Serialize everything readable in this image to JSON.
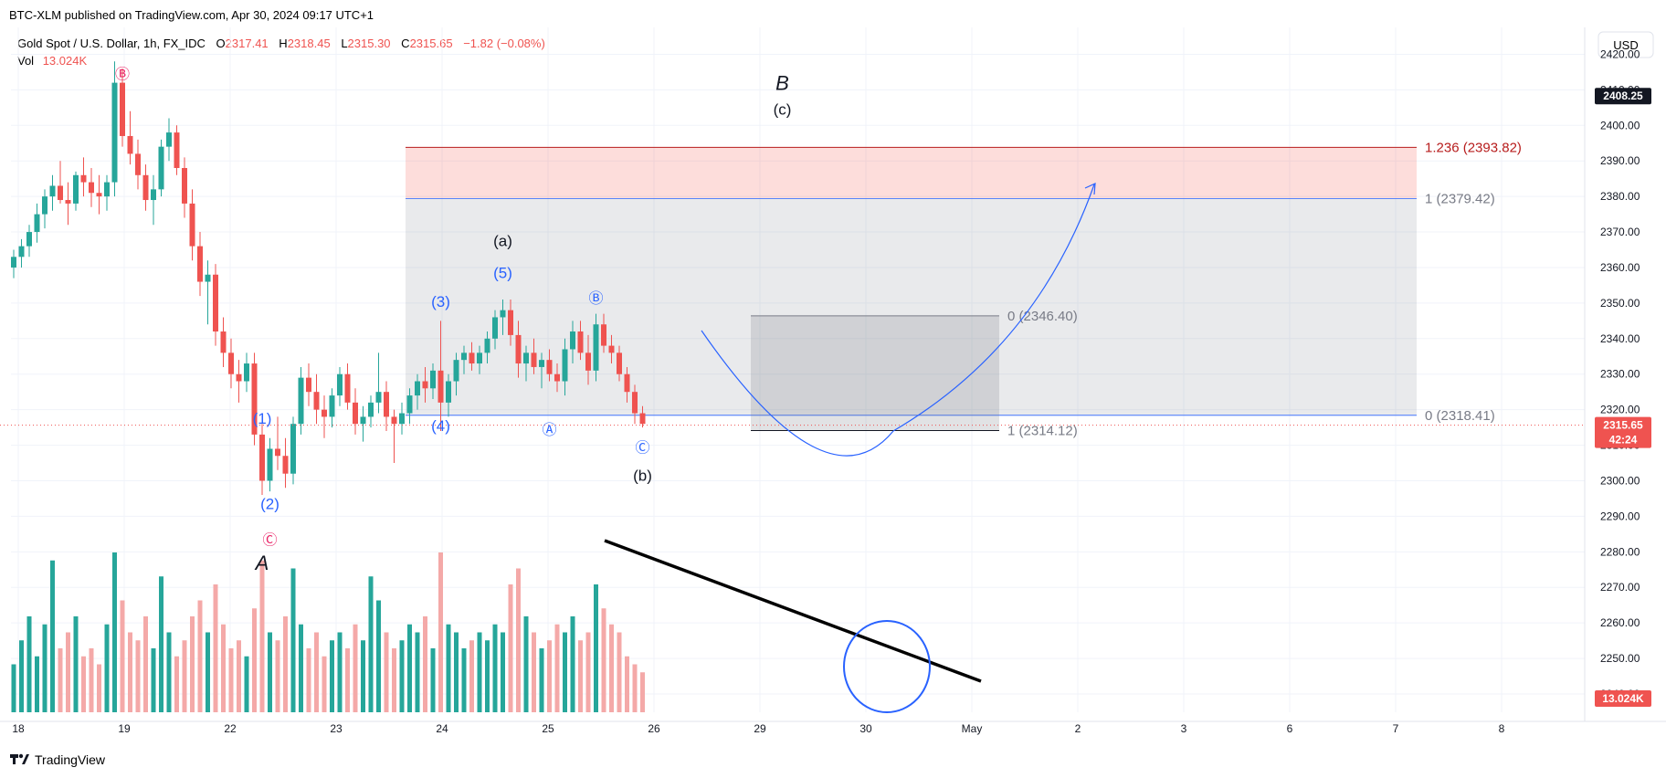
{
  "publisher": "BTC-XLM published on TradingView.com, Apr 30, 2024 09:17 UTC+1",
  "legend": {
    "symbol": "Gold Spot / U.S. Dollar, 1h, FX_IDC",
    "o_label": "O",
    "o_value": "2317.41",
    "h_label": "H",
    "h_value": "2318.45",
    "l_label": "L",
    "l_value": "2315.30",
    "c_label": "C",
    "c_value": "2315.65",
    "change": "−1.82 (−0.08%)",
    "vol_label": "Vol",
    "vol_value": "13.024K"
  },
  "currency_button": "USD",
  "brand": "TradingView",
  "colors": {
    "up": "#26a69a",
    "down": "#ef5350",
    "up_vol": "#26a69a",
    "down_vol": "#f4a9a8",
    "wave": "#2962ff",
    "fib_red": "#b71c1c",
    "pink": "#e91e63"
  },
  "chart_data": {
    "type": "candlestick",
    "ylim": [
      2240,
      2425
    ],
    "y_ticks": [
      "2420.00",
      "2410.00",
      "2400.00",
      "2390.00",
      "2380.00",
      "2370.00",
      "2360.00",
      "2350.00",
      "2340.00",
      "2330.00",
      "2320.00",
      "2310.00",
      "2300.00",
      "2290.00",
      "2280.00",
      "2270.00",
      "2260.00",
      "2250.00",
      "2240.00"
    ],
    "x_ticks": [
      "18",
      "19",
      "22",
      "23",
      "24",
      "25",
      "26",
      "29",
      "30",
      "May",
      "2",
      "3",
      "6",
      "7",
      "8"
    ],
    "price_tags": [
      {
        "label": "2408.25",
        "value": 2408.25,
        "color": "#131722"
      },
      {
        "label": "2315.65",
        "sublabel": "42:24",
        "value": 2315.65,
        "color": "#ef5350"
      },
      {
        "label": "13.024K",
        "value": 2249,
        "color": "#ef5350"
      }
    ],
    "candles": [
      [
        2360,
        2365,
        2357,
        2363
      ],
      [
        2363,
        2368,
        2360,
        2366
      ],
      [
        2366,
        2372,
        2363,
        2370
      ],
      [
        2370,
        2378,
        2367,
        2375
      ],
      [
        2375,
        2382,
        2371,
        2380
      ],
      [
        2380,
        2386,
        2376,
        2383
      ],
      [
        2383,
        2390,
        2378,
        2379
      ],
      [
        2379,
        2384,
        2372,
        2378
      ],
      [
        2378,
        2387,
        2376,
        2386
      ],
      [
        2386,
        2391,
        2380,
        2384
      ],
      [
        2384,
        2388,
        2377,
        2381
      ],
      [
        2381,
        2386,
        2375,
        2380
      ],
      [
        2380,
        2386,
        2376,
        2384
      ],
      [
        2384,
        2418,
        2380,
        2412
      ],
      [
        2412,
        2416,
        2394,
        2397
      ],
      [
        2397,
        2404,
        2389,
        2392
      ],
      [
        2392,
        2396,
        2382,
        2386
      ],
      [
        2386,
        2389,
        2376,
        2379
      ],
      [
        2379,
        2386,
        2372,
        2382
      ],
      [
        2382,
        2396,
        2380,
        2394
      ],
      [
        2394,
        2402,
        2390,
        2398
      ],
      [
        2398,
        2400,
        2386,
        2388
      ],
      [
        2388,
        2391,
        2374,
        2378
      ],
      [
        2378,
        2382,
        2362,
        2366
      ],
      [
        2366,
        2370,
        2352,
        2356
      ],
      [
        2356,
        2362,
        2344,
        2358
      ],
      [
        2358,
        2361,
        2338,
        2342
      ],
      [
        2342,
        2346,
        2332,
        2336
      ],
      [
        2336,
        2340,
        2326,
        2330
      ],
      [
        2330,
        2334,
        2322,
        2328
      ],
      [
        2328,
        2336,
        2325,
        2333
      ],
      [
        2333,
        2336,
        2310,
        2313
      ],
      [
        2313,
        2316,
        2296,
        2300
      ],
      [
        2300,
        2312,
        2297,
        2309
      ],
      [
        2309,
        2318,
        2303,
        2307
      ],
      [
        2307,
        2312,
        2298,
        2302
      ],
      [
        2302,
        2318,
        2299,
        2316
      ],
      [
        2316,
        2332,
        2313,
        2329
      ],
      [
        2329,
        2333,
        2321,
        2325
      ],
      [
        2325,
        2330,
        2316,
        2320
      ],
      [
        2320,
        2324,
        2312,
        2318
      ],
      [
        2318,
        2326,
        2315,
        2324
      ],
      [
        2324,
        2332,
        2321,
        2330
      ],
      [
        2330,
        2333,
        2320,
        2322
      ],
      [
        2322,
        2326,
        2313,
        2316
      ],
      [
        2316,
        2321,
        2311,
        2318
      ],
      [
        2318,
        2324,
        2315,
        2322
      ],
      [
        2322,
        2336,
        2319,
        2325
      ],
      [
        2325,
        2328,
        2314,
        2318
      ],
      [
        2318,
        2320,
        2305,
        2316
      ],
      [
        2316,
        2322,
        2313,
        2319
      ],
      [
        2319,
        2326,
        2316,
        2324
      ],
      [
        2324,
        2330,
        2320,
        2328
      ],
      [
        2328,
        2332,
        2322,
        2326
      ],
      [
        2326,
        2333,
        2323,
        2331
      ],
      [
        2331,
        2345,
        2314,
        2322
      ],
      [
        2322,
        2330,
        2318,
        2328
      ],
      [
        2328,
        2336,
        2324,
        2334
      ],
      [
        2334,
        2338,
        2330,
        2336
      ],
      [
        2336,
        2339,
        2331,
        2333
      ],
      [
        2333,
        2338,
        2330,
        2336
      ],
      [
        2336,
        2342,
        2333,
        2340
      ],
      [
        2340,
        2348,
        2337,
        2346
      ],
      [
        2346,
        2351,
        2341,
        2348
      ],
      [
        2348,
        2351,
        2338,
        2341
      ],
      [
        2341,
        2345,
        2329,
        2333
      ],
      [
        2333,
        2338,
        2328,
        2336
      ],
      [
        2336,
        2340,
        2330,
        2332
      ],
      [
        2332,
        2336,
        2326,
        2334
      ],
      [
        2334,
        2337,
        2328,
        2330
      ],
      [
        2330,
        2333,
        2325,
        2328
      ],
      [
        2328,
        2340,
        2324,
        2337
      ],
      [
        2337,
        2345,
        2333,
        2342
      ],
      [
        2342,
        2345,
        2334,
        2336
      ],
      [
        2336,
        2341,
        2327,
        2331
      ],
      [
        2331,
        2347,
        2328,
        2344
      ],
      [
        2344,
        2347,
        2336,
        2338
      ],
      [
        2338,
        2341,
        2333,
        2336
      ],
      [
        2336,
        2338,
        2328,
        2330
      ],
      [
        2330,
        2332,
        2322,
        2325
      ],
      [
        2325,
        2327,
        2316,
        2319
      ],
      [
        2319,
        2321,
        2315,
        2316
      ]
    ],
    "volume_rel": [
      0.3,
      0.45,
      0.6,
      0.35,
      0.55,
      0.95,
      0.4,
      0.5,
      0.6,
      0.35,
      0.4,
      0.3,
      0.55,
      1.0,
      0.7,
      0.5,
      0.45,
      0.6,
      0.4,
      0.85,
      0.5,
      0.35,
      0.45,
      0.6,
      0.7,
      0.5,
      0.8,
      0.55,
      0.4,
      0.45,
      0.35,
      0.65,
      0.95,
      0.5,
      0.45,
      0.6,
      0.9,
      0.55,
      0.4,
      0.5,
      0.35,
      0.45,
      0.5,
      0.4,
      0.55,
      0.45,
      0.85,
      0.7,
      0.5,
      0.4,
      0.45,
      0.55,
      0.5,
      0.6,
      0.4,
      1.0,
      0.55,
      0.5,
      0.4,
      0.45,
      0.5,
      0.45,
      0.55,
      0.5,
      0.8,
      0.9,
      0.6,
      0.5,
      0.4,
      0.45,
      0.55,
      0.5,
      0.6,
      0.45,
      0.5,
      0.8,
      0.65,
      0.55,
      0.5,
      0.35,
      0.3,
      0.25
    ],
    "wave_labels": [
      {
        "text": "Ⓑ",
        "x": 14,
        "y": 2413,
        "color": "#e91e63"
      },
      {
        "text": "(1)",
        "x": 32,
        "y": 2316,
        "color": "#2962ff"
      },
      {
        "text": "(2)",
        "x": 33,
        "y": 2292,
        "color": "#2962ff"
      },
      {
        "text": "Ⓒ",
        "x": 33,
        "y": 2282,
        "color": "#e91e63"
      },
      {
        "text": "A",
        "x": 32,
        "y": 2275,
        "color": "#131722"
      },
      {
        "text": "(3)",
        "x": 55,
        "y": 2349,
        "color": "#2962ff"
      },
      {
        "text": "(4)",
        "x": 55,
        "y": 2314,
        "color": "#2962ff"
      },
      {
        "text": "(a)",
        "x": 63,
        "y": 2366,
        "color": "#131722"
      },
      {
        "text": "(5)",
        "x": 63,
        "y": 2357,
        "color": "#2962ff"
      },
      {
        "text": "Ⓐ",
        "x": 69,
        "y": 2313,
        "color": "#2962ff"
      },
      {
        "text": "Ⓑ",
        "x": 75,
        "y": 2350,
        "color": "#2962ff"
      },
      {
        "text": "Ⓒ",
        "x": 81,
        "y": 2308,
        "color": "#2962ff"
      },
      {
        "text": "(b)",
        "x": 81,
        "y": 2300,
        "color": "#131722"
      },
      {
        "text": "B",
        "x": 99,
        "y": 2410,
        "color": "#131722"
      },
      {
        "text": "(c)",
        "x": 99,
        "y": 2403,
        "color": "#131722"
      }
    ],
    "fib_levels": [
      {
        "label": "1.236 (2393.82)",
        "value": 2393.82,
        "color": "#b71c1c"
      },
      {
        "label": "1 (2379.42)",
        "value": 2379.42,
        "color": "#787b86"
      },
      {
        "label": "0 (2346.40)",
        "value": 2346.4,
        "color": "#787b86"
      },
      {
        "label": "0 (2318.41)",
        "value": 2318.41,
        "color": "#787b86"
      },
      {
        "label": "1 (2314.12)",
        "value": 2314.12,
        "color": "#787b86"
      }
    ]
  }
}
